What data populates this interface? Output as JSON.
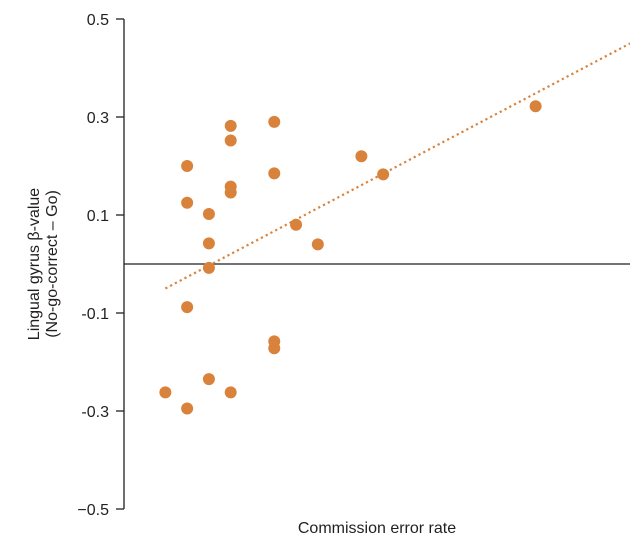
{
  "chart_data": {
    "type": "scatter",
    "title": "",
    "xlabel": "Commission error rate",
    "ylabel_line1": "Lingual gyrus β-value",
    "ylabel_line2": "(No-go-correct – Go)",
    "ylim": [
      -0.5,
      0.5
    ],
    "yticks": [
      0.5,
      0.3,
      0.1,
      -0.1,
      -0.3,
      -0.5
    ],
    "ytick_labels": [
      "0.5",
      "0.3",
      "0.1",
      "-0.1",
      "-0.3",
      "−0.5"
    ],
    "xlim": [
      0,
      1
    ],
    "x_tick_labels_shown": false,
    "grid": false,
    "reference_line_y": 0,
    "point_color": "#d9823b",
    "trendline_color": "#d9823b",
    "trendline": {
      "x": [
        0.04,
        1.0
      ],
      "y": [
        -0.05,
        0.45
      ]
    },
    "points": [
      {
        "x": 0.04,
        "y": -0.262
      },
      {
        "x": 0.085,
        "y": 0.2
      },
      {
        "x": 0.085,
        "y": 0.125
      },
      {
        "x": 0.085,
        "y": -0.088
      },
      {
        "x": 0.085,
        "y": -0.295
      },
      {
        "x": 0.13,
        "y": 0.102
      },
      {
        "x": 0.13,
        "y": 0.042
      },
      {
        "x": 0.13,
        "y": -0.008
      },
      {
        "x": 0.13,
        "y": -0.235
      },
      {
        "x": 0.175,
        "y": 0.282
      },
      {
        "x": 0.175,
        "y": 0.252
      },
      {
        "x": 0.175,
        "y": 0.158
      },
      {
        "x": 0.175,
        "y": 0.146
      },
      {
        "x": 0.175,
        "y": -0.262
      },
      {
        "x": 0.265,
        "y": 0.29
      },
      {
        "x": 0.265,
        "y": 0.185
      },
      {
        "x": 0.265,
        "y": -0.158
      },
      {
        "x": 0.265,
        "y": -0.172
      },
      {
        "x": 0.31,
        "y": 0.08
      },
      {
        "x": 0.355,
        "y": 0.04
      },
      {
        "x": 0.445,
        "y": 0.22
      },
      {
        "x": 0.49,
        "y": 0.183
      },
      {
        "x": 0.805,
        "y": 0.322
      }
    ]
  }
}
